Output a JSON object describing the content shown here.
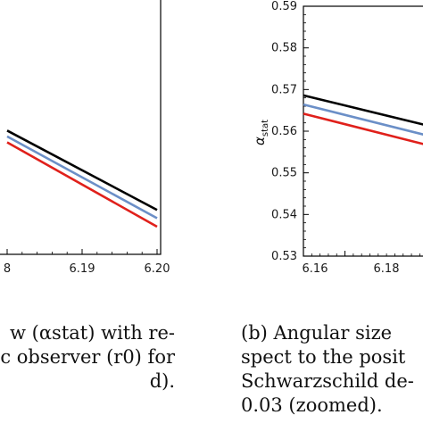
{
  "chart_data": [
    {
      "type": "line",
      "panel": "a",
      "xlabel": "",
      "ylabel": "",
      "x_ticks": [
        "8",
        "6.19",
        "6.20"
      ],
      "xlim_visible": [
        6.1778,
        6.2
      ],
      "series": [
        {
          "color": "#000000",
          "x": [
            6.1778,
            6.2
          ],
          "y": [
            0.5595,
            0.5325
          ]
        },
        {
          "color": "#6b8fc7",
          "x": [
            6.1778,
            6.2
          ],
          "y": [
            0.5575,
            0.5297
          ]
        },
        {
          "color": "#e0201b",
          "x": [
            6.1778,
            6.2
          ],
          "y": [
            0.5555,
            0.5268
          ]
        }
      ]
    },
    {
      "type": "line",
      "panel": "b",
      "xlabel": "",
      "ylabel": "α_stat",
      "ylabel_main": "α",
      "ylabel_sub": "stat",
      "xlim_visible": [
        6.15,
        6.1805
      ],
      "ylim": [
        0.53,
        0.59
      ],
      "x_ticks": [
        "6.16",
        "6.18"
      ],
      "y_ticks": [
        "0.53",
        "0.54",
        "0.55",
        "0.56",
        "0.57",
        "0.58",
        "0.59"
      ],
      "series": [
        {
          "color": "#000000",
          "x": [
            6.15,
            6.1805
          ],
          "y": [
            0.5686,
            0.5612
          ]
        },
        {
          "color": "#6b8fc7",
          "x": [
            6.15,
            6.1805
          ],
          "y": [
            0.5664,
            0.5588
          ]
        },
        {
          "color": "#e0201b",
          "x": [
            6.15,
            6.1805
          ],
          "y": [
            0.5642,
            0.5565
          ]
        }
      ]
    }
  ],
  "captions": {
    "a": "w (αstat) with re-\nc observer (r0) for\nd).",
    "b": "(b) Angular size \nspect to the posit\nSchwarzschild de-\n0.03 (zoomed)."
  }
}
